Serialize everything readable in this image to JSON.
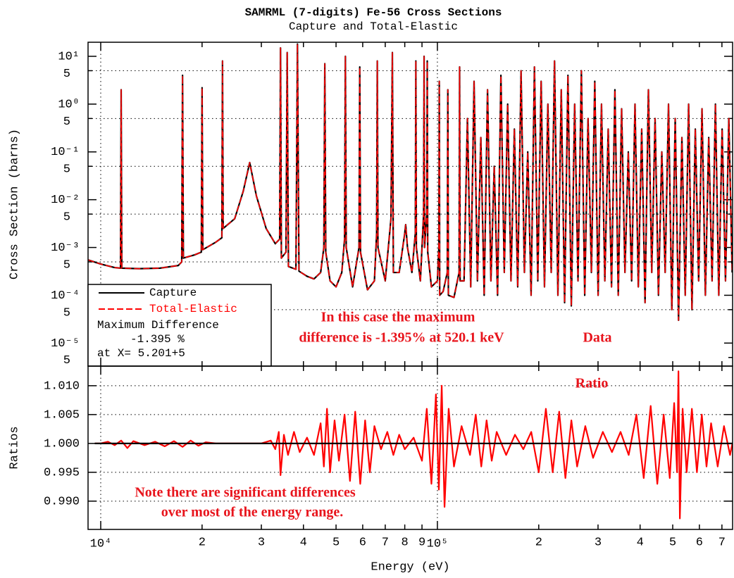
{
  "chart_data": [
    {
      "type": "line",
      "title": "SAMRML (7-digits) Fe-56 Cross Sections",
      "subtitle": "Capture and Total-Elastic",
      "ylabel": "Cross Section (barns)",
      "xscale": "log",
      "yscale": "log",
      "xlim": [
        9170,
        753000
      ],
      "ylim": [
        3.3e-06,
        19.7
      ],
      "yticks": [
        {
          "value": 10,
          "label": "10¹"
        },
        {
          "value": 5,
          "label": "5"
        },
        {
          "value": 1,
          "label": "10⁰"
        },
        {
          "value": 0.5,
          "label": "5"
        },
        {
          "value": 0.1,
          "label": "10⁻¹"
        },
        {
          "value": 0.05,
          "label": "5"
        },
        {
          "value": 0.01,
          "label": "10⁻²"
        },
        {
          "value": 0.005,
          "label": "5"
        },
        {
          "value": 0.001,
          "label": "10⁻³"
        },
        {
          "value": 0.0005,
          "label": "5"
        },
        {
          "value": 0.0001,
          "label": "10⁻⁴"
        },
        {
          "value": 5e-05,
          "label": "5"
        },
        {
          "value": 1e-05,
          "label": "10⁻⁵"
        },
        {
          "value": 5e-06,
          "label": "5"
        }
      ],
      "ygrid": [
        5,
        0.5,
        0.05,
        0.005,
        0.0005,
        5e-05
      ],
      "xgrid": [
        10000,
        100000
      ],
      "legend_position": "lower left",
      "legend_notes": [
        "Maximum Difference",
        "-1.395 %",
        "at X= 5.201+5"
      ],
      "annotations": [
        "In this case the maximum",
        "difference is -1.395% at 520.1 keV",
        "Data"
      ],
      "x": [
        9170,
        10000,
        11000,
        11450,
        11500,
        11550,
        13000,
        15000,
        17000,
        17400,
        17500,
        17600,
        19000,
        19900,
        20000,
        20100,
        22000,
        22900,
        23000,
        23100,
        25000,
        26500,
        27700,
        29000,
        31000,
        33000,
        34000,
        34200,
        34400,
        35500,
        35800,
        36100,
        38000,
        38400,
        38800,
        41000,
        43000,
        45000,
        46000,
        46300,
        46600,
        48000,
        50000,
        52000,
        53000,
        53300,
        53600,
        56000,
        58500,
        58800,
        59100,
        62000,
        65000,
        66000,
        66300,
        66600,
        70000,
        72800,
        73500,
        74000,
        77000,
        80000,
        80500,
        81500,
        84000,
        86000,
        86300,
        86600,
        89000,
        91000,
        91300,
        91600,
        93000,
        93300,
        93600,
        96000,
        100000,
        101000,
        101300,
        101600,
        104000,
        107000,
        107400,
        107800,
        112000,
        116000,
        116400,
        116800,
        120000,
        122800,
        125600,
        128500,
        131500,
        134600,
        137700,
        140900,
        144200,
        147500,
        150900,
        154400,
        158000,
        161700,
        165400,
        169300,
        173200,
        177200,
        181300,
        185500,
        189800,
        194200,
        198700,
        203300,
        208000,
        212900,
        217800,
        222800,
        228000,
        233300,
        238700,
        244200,
        249900,
        255700,
        261600,
        267700,
        273900,
        280200,
        286700,
        293400,
        300200,
        307200,
        314300,
        321600,
        329000,
        336700,
        344500,
        352500,
        360600,
        369000,
        377500,
        386300,
        395200,
        404400,
        413800,
        423400,
        433200,
        443200,
        453500,
        464000,
        474800,
        485800,
        497000,
        508600,
        520300,
        532400,
        544700,
        557400,
        570300,
        583500,
        597000,
        610900,
        625100,
        639600,
        654400,
        669600,
        685100,
        701000,
        717300,
        733900,
        750900
      ],
      "series": [
        {
          "name": "Capture",
          "color": "#000000",
          "values": [
            0.00055,
            0.00045,
            0.00038,
            0.00037,
            2,
            0.00037,
            0.00036,
            0.00037,
            0.00042,
            0.0005,
            4,
            0.0006,
            0.0007,
            0.0008,
            2.2,
            0.0009,
            0.0013,
            0.0016,
            8,
            0.0025,
            0.004,
            0.015,
            0.06,
            0.012,
            0.0025,
            0.0012,
            0.0015,
            15,
            0.0006,
            0.0008,
            12,
            0.0004,
            0.00035,
            18,
            0.00032,
            0.00025,
            0.00022,
            0.0003,
            0.001,
            7,
            0.0008,
            0.0002,
            0.00015,
            0.0003,
            0.0015,
            10,
            0.001,
            0.00015,
            0.001,
            6,
            0.0008,
            0.00013,
            0.0002,
            0.002,
            8,
            0.001,
            0.0002,
            0.004,
            12,
            0.0003,
            0.0003,
            0.002,
            0.003,
            0.001,
            0.0003,
            0.002,
            8,
            0.001,
            0.0002,
            0.005,
            10,
            0.001,
            0.005,
            8,
            0.0008,
            0.00015,
            0.0002,
            0.001,
            3,
            0.0001,
            0.00012,
            0.0003,
            2,
            0.0001,
            9e-05,
            0.0003,
            6,
            0.0002,
            0.0002,
            0.5,
            0.00015,
            3,
            0.0002,
            0.2,
            0.0001,
            2,
            0.0002,
            0.05,
            0.0001,
            4,
            0.0003,
            1,
            0.0002,
            0.3,
            0.00015,
            5,
            0.0003,
            0.1,
            0.0001,
            6,
            0.0002,
            3,
            0.00015,
            1,
            0.0003,
            8,
            0.0001,
            2,
            7e-05,
            4,
            6e-05,
            1,
            0.0002,
            5,
            0.0001,
            0.5,
            0.0003,
            3,
            0.0001,
            1,
            0.0002,
            0.3,
            0.00015,
            2,
            0.0001,
            0.8,
            0.0003,
            0.1,
            0.0002,
            1,
            0.00015,
            0.3,
            7e-05,
            2,
            0.0003,
            0.5,
            0.0001,
            0.1,
            0.0003,
            1,
            5e-05,
            0.5,
            3e-05,
            0.2,
            0.0001,
            1,
            5e-05,
            0.3,
            0.0002,
            0.8,
            0.0001,
            0.2,
            0.0002,
            1,
            0.0001,
            0.3,
            0.0002,
            0.5,
            0.0003
          ]
        },
        {
          "name": "Total-Elastic",
          "color": "#ff0000",
          "dash": true,
          "values": [
            0.00055,
            0.00045,
            0.00038,
            0.00037,
            2,
            0.00037,
            0.00036,
            0.00037,
            0.00042,
            0.0005,
            4,
            0.0006,
            0.0007,
            0.0008,
            2.2,
            0.0009,
            0.0013,
            0.0016,
            8,
            0.0025,
            0.004,
            0.015,
            0.06,
            0.012,
            0.0025,
            0.0012,
            0.0015,
            15,
            0.0006,
            0.0008,
            12,
            0.0004,
            0.00035,
            18,
            0.00032,
            0.00025,
            0.00022,
            0.0003,
            0.001,
            7,
            0.0008,
            0.0002,
            0.00015,
            0.0003,
            0.0015,
            10,
            0.001,
            0.00015,
            0.001,
            6,
            0.0008,
            0.00013,
            0.0002,
            0.002,
            8,
            0.001,
            0.0002,
            0.004,
            12,
            0.0003,
            0.0003,
            0.002,
            0.003,
            0.001,
            0.0003,
            0.002,
            8,
            0.001,
            0.0002,
            0.005,
            10,
            0.001,
            0.005,
            8,
            0.0008,
            0.00015,
            0.0002,
            0.001,
            3,
            0.0001,
            0.00012,
            0.0003,
            2,
            0.0001,
            9e-05,
            0.0003,
            6,
            0.0002,
            0.0002,
            0.5,
            0.00015,
            3,
            0.0002,
            0.2,
            0.0001,
            2,
            0.0002,
            0.05,
            0.0001,
            4,
            0.0003,
            1,
            0.0002,
            0.3,
            0.00015,
            5,
            0.0003,
            0.1,
            0.0001,
            6,
            0.0002,
            3,
            0.00015,
            1,
            0.0003,
            8,
            0.0001,
            2,
            7e-05,
            4,
            6e-05,
            1,
            0.0002,
            5,
            0.0001,
            0.5,
            0.0003,
            3,
            0.0001,
            1,
            0.0002,
            0.3,
            0.00015,
            2,
            0.0001,
            0.8,
            0.0003,
            0.1,
            0.0002,
            1,
            0.00015,
            0.3,
            7e-05,
            2,
            0.0003,
            0.5,
            0.0001,
            0.1,
            0.0003,
            1,
            5e-05,
            0.5,
            3e-05,
            0.2,
            0.0001,
            1,
            5e-05,
            0.3,
            0.0002,
            0.8,
            0.0001,
            0.2,
            0.0002,
            1,
            0.0001,
            0.3,
            0.0002,
            0.5,
            0.0003
          ]
        }
      ]
    },
    {
      "type": "line",
      "ylabel": "Ratios",
      "xlabel": "Energy (eV)",
      "xscale": "log",
      "xlim": [
        9170,
        753000
      ],
      "ylim": [
        0.9851,
        1.0134
      ],
      "grid": true,
      "yticks": [
        {
          "value": 1.01,
          "label": "1.010"
        },
        {
          "value": 1.005,
          "label": "1.005"
        },
        {
          "value": 1,
          "label": "1.000"
        },
        {
          "value": 0.995,
          "label": "0.995"
        },
        {
          "value": 0.99,
          "label": "0.990"
        }
      ],
      "xticks": [
        {
          "value": 10000,
          "label": "10⁴"
        },
        {
          "value": 20000,
          "label": "2"
        },
        {
          "value": 30000,
          "label": "3"
        },
        {
          "value": 40000,
          "label": "4"
        },
        {
          "value": 50000,
          "label": "5"
        },
        {
          "value": 60000,
          "label": "6"
        },
        {
          "value": 70000,
          "label": "7"
        },
        {
          "value": 80000,
          "label": "8"
        },
        {
          "value": 90000,
          "label": "9"
        },
        {
          "value": 100000,
          "label": "10⁵"
        },
        {
          "value": 200000,
          "label": "2"
        },
        {
          "value": 300000,
          "label": "3"
        },
        {
          "value": 400000,
          "label": "4"
        },
        {
          "value": 500000,
          "label": "5"
        },
        {
          "value": 600000,
          "label": "6"
        },
        {
          "value": 700000,
          "label": "7"
        }
      ],
      "xgrid": [
        10000,
        100000
      ],
      "annotations": [
        "Ratio",
        "Note there are significant differences",
        "over most of the energy range."
      ],
      "series": [
        {
          "color": "#ff0000",
          "x": [
            9600,
            10000,
            10500,
            11000,
            11500,
            12000,
            12500,
            13500,
            14500,
            15500,
            16500,
            17500,
            18500,
            19500,
            20500,
            22000,
            30000,
            32000,
            33000,
            33800,
            34200,
            35000,
            36000,
            37500,
            39000,
            41000,
            43000,
            45000,
            46000,
            47000,
            48000,
            49500,
            51000,
            53000,
            55000,
            57000,
            59000,
            61000,
            63000,
            65000,
            68000,
            71000,
            74000,
            77000,
            80000,
            85000,
            90000,
            93000,
            96000,
            99000,
            101000,
            103000,
            105000,
            108000,
            112000,
            118000,
            125000,
            130000,
            135000,
            140000,
            145000,
            150000,
            160000,
            170000,
            180000,
            190000,
            200000,
            210000,
            220000,
            230000,
            240000,
            250000,
            260000,
            275000,
            290000,
            310000,
            330000,
            350000,
            370000,
            390000,
            410000,
            430000,
            450000,
            470000,
            490000,
            505000,
            515000,
            520000,
            525000,
            535000,
            550000,
            570000,
            590000,
            610000,
            630000,
            650000,
            680000,
            710000,
            740000,
            752000
          ],
          "values": [
            1,
            1,
            1.0003,
            0.9997,
            1.0005,
            0.9992,
            1.0004,
            0.9997,
            1.0003,
            0.9995,
            1.0004,
            0.9994,
            1.0005,
            0.9996,
            1.0002,
            1,
            1,
            1.0005,
            0.999,
            1.002,
            0.9945,
            1.0015,
            0.998,
            1.002,
            0.9985,
            1.001,
            0.998,
            1.0035,
            0.996,
            1.006,
            0.995,
            1.004,
            0.997,
            1.005,
            0.9935,
            1.0055,
            0.993,
            1.004,
            0.995,
            1.003,
            0.999,
            1.002,
            0.998,
            1.0015,
            0.999,
            1.001,
            0.997,
            1.006,
            0.993,
            1.0085,
            0.992,
            1.01,
            0.989,
            1.006,
            0.996,
            1.003,
            0.998,
            1.005,
            0.996,
            1.004,
            0.997,
            1.002,
            0.998,
            1.0015,
            0.999,
            1.002,
            0.995,
            1.006,
            0.995,
            1.0055,
            0.994,
            1.004,
            0.996,
            1.003,
            0.9975,
            1.002,
            0.9985,
            1.002,
            0.998,
            1.005,
            0.994,
            1.0065,
            0.993,
            1.005,
            0.994,
            1.007,
            0.995,
            1.0125,
            0.987,
            1.006,
            0.995,
            1.006,
            0.995,
            1.005,
            0.996,
            1.0035,
            0.996,
            1.003,
            0.998,
            1
          ]
        },
        {
          "color": "#000000",
          "x": [
            9600,
            752000
          ],
          "values": [
            1,
            1
          ]
        }
      ]
    }
  ]
}
